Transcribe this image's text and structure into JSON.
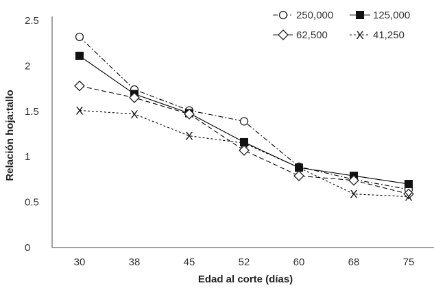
{
  "chart_data": {
    "type": "line",
    "title": "",
    "xlabel": "Edad al corte (días)",
    "ylabel": "Relación hoja:tallo",
    "categories": [
      "30",
      "38",
      "45",
      "52",
      "60",
      "68",
      "75"
    ],
    "ylim": [
      0,
      2.5
    ],
    "yticks": [
      0,
      0.5,
      1,
      1.5,
      2,
      2.5
    ],
    "ytick_labels": [
      "0",
      "0.5",
      "1",
      "1.5",
      "2",
      "2.5"
    ],
    "grid": false,
    "legend_position": "top-right",
    "series": [
      {
        "name": "250,000",
        "marker": "circle",
        "line_style": "dash-dot",
        "color": "#000000",
        "values": [
          2.32,
          1.74,
          1.51,
          1.39,
          0.89,
          0.75,
          0.64
        ]
      },
      {
        "name": "125,000",
        "marker": "square",
        "line_style": "solid",
        "color": "#000000",
        "values": [
          2.11,
          1.69,
          1.48,
          1.16,
          0.88,
          0.79,
          0.7
        ]
      },
      {
        "name": "62,500",
        "marker": "diamond",
        "line_style": "dashed",
        "color": "#000000",
        "values": [
          1.78,
          1.65,
          1.47,
          1.07,
          0.79,
          0.74,
          0.59
        ]
      },
      {
        "name": "41,250",
        "marker": "x",
        "line_style": "dotted",
        "color": "#000000",
        "values": [
          1.51,
          1.47,
          1.23,
          1.15,
          0.88,
          0.59,
          0.56
        ]
      }
    ]
  }
}
